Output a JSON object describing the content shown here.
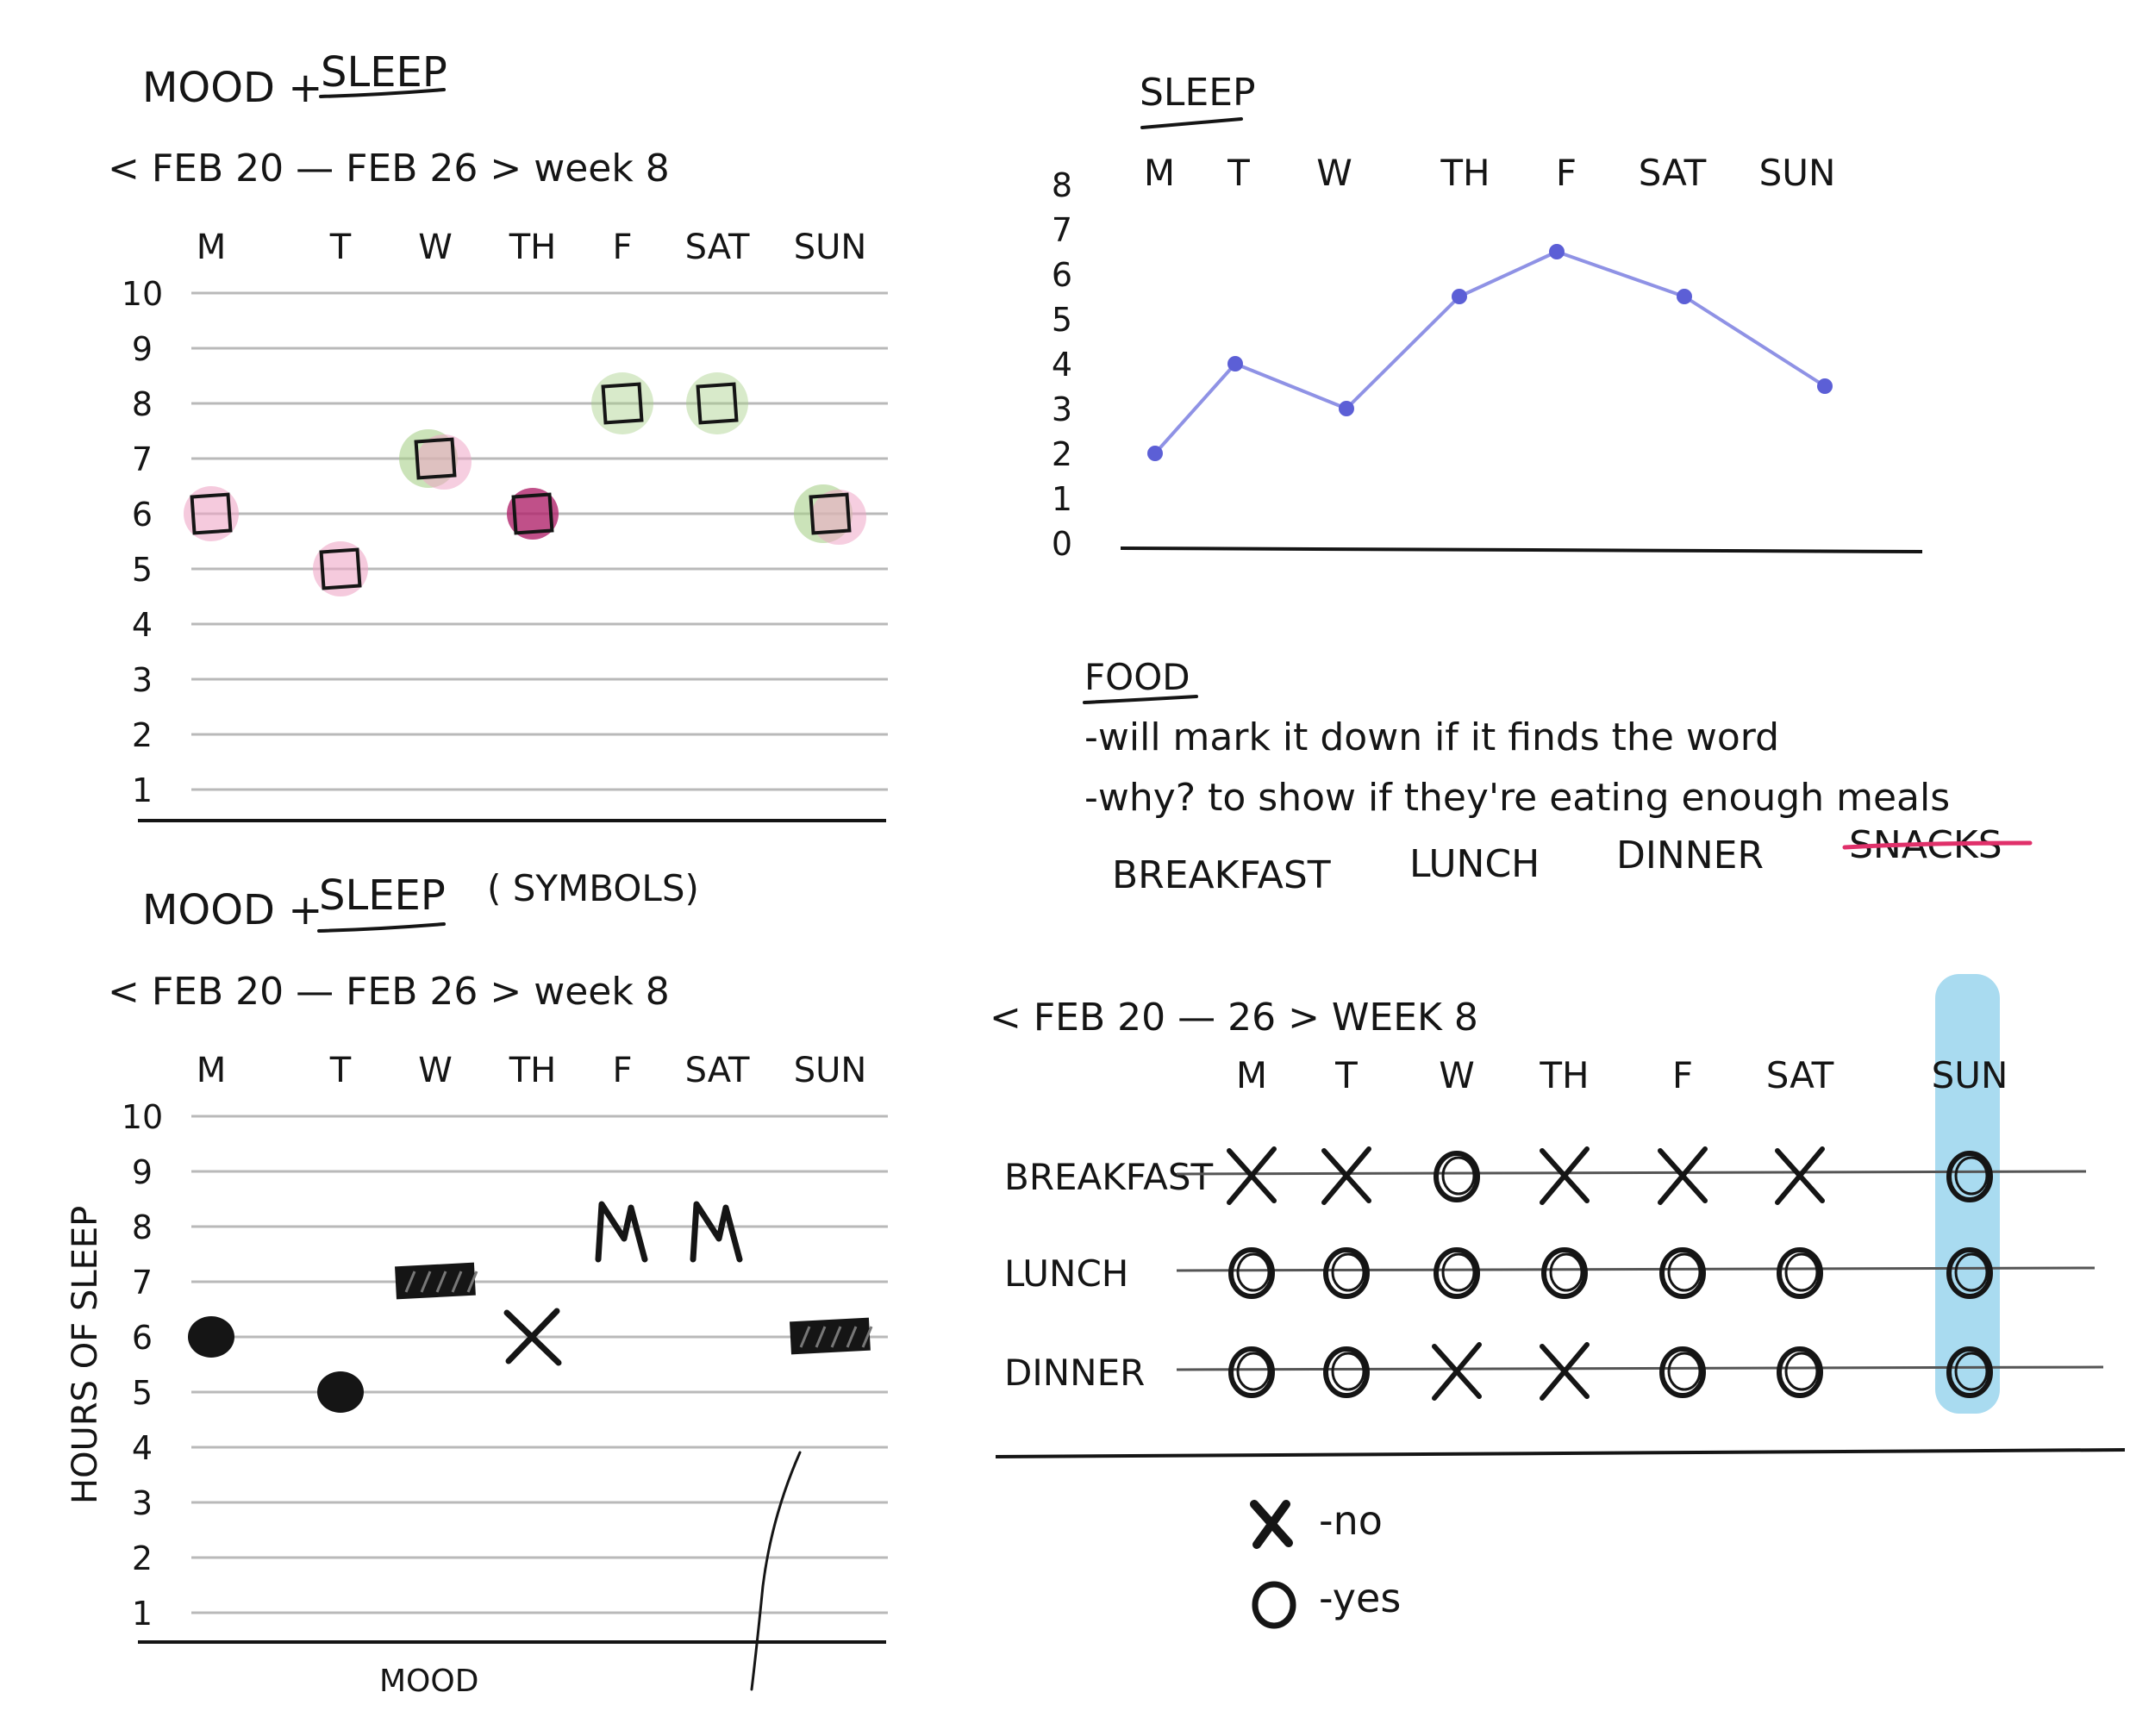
{
  "panel1": {
    "title_a": "MOOD +",
    "title_b": "SLEEP",
    "date_range": "< FEB 20 — FEB 26 > week 8",
    "days": [
      "M",
      "T",
      "W",
      "TH",
      "F",
      "SAT",
      "SUN"
    ],
    "y_ticks": [
      "10",
      "9",
      "8",
      "7",
      "6",
      "5",
      "4",
      "3",
      "2",
      "1"
    ]
  },
  "panel2": {
    "title_a": "MOOD +",
    "title_b": "SLEEP",
    "title_c": "( SYMBOLS)",
    "date_range": "< FEB 20 — FEB 26 > week 8",
    "days": [
      "M",
      "T",
      "W",
      "TH",
      "F",
      "SAT",
      "SUN"
    ],
    "y_ticks": [
      "10",
      "9",
      "8",
      "7",
      "6",
      "5",
      "4",
      "3",
      "2",
      "1"
    ],
    "ylabel": "HOURS OF SLEEP",
    "xlabel": "MOOD"
  },
  "panel3": {
    "title": "SLEEP",
    "days": [
      "M",
      "T",
      "W",
      "TH",
      "F",
      "SAT",
      "SUN"
    ],
    "y_ticks": [
      "8",
      "7",
      "6",
      "5",
      "4",
      "3",
      "2",
      "1",
      "0"
    ],
    "line_color": "#7B7FE0"
  },
  "food": {
    "title": "FOOD",
    "note1": "-will mark it down if it finds the word",
    "note2": "-why? to show if they're eating enough meals",
    "meals": [
      "BREAKFAST",
      "LUNCH",
      "DINNER"
    ],
    "struck": "SNACKS",
    "strike_color": "#E0306A"
  },
  "panel4": {
    "date_range": "< FEB 20 — 26 > WEEK 8",
    "days": [
      "M",
      "T",
      "W",
      "TH",
      "F",
      "SAT",
      "SUN"
    ],
    "rows": [
      "BREAKFAST",
      "LUNCH",
      "DINNER"
    ],
    "highlight_color": "#A9DBF0",
    "legend_no": "-no",
    "legend_yes": "-yes"
  },
  "chart_data": [
    {
      "type": "scatter",
      "categories": [
        "M",
        "T",
        "W",
        "TH",
        "F",
        "SAT",
        "SUN"
      ],
      "values": [
        6,
        5,
        7,
        6,
        8,
        8,
        6
      ],
      "mood_colors": [
        "pink",
        "pink",
        "green+pink",
        "magenta",
        "green",
        "green",
        "green+pink"
      ],
      "ylim": [
        1,
        10
      ],
      "colors": {
        "pink": "#EFA6C7",
        "green": "#A9D08A",
        "magenta": "#B0246C"
      }
    },
    {
      "type": "scatter",
      "categories": [
        "M",
        "T",
        "W",
        "TH",
        "F",
        "SAT",
        "SUN"
      ],
      "values": [
        6,
        5,
        7,
        6,
        8,
        8,
        6
      ],
      "symbols": [
        "dot",
        "dot",
        "bar",
        "x",
        "m",
        "m",
        "bar"
      ],
      "ylim": [
        1,
        10
      ]
    },
    {
      "type": "line",
      "categories": [
        "M",
        "T",
        "W",
        "TH",
        "F",
        "SAT",
        "SUN"
      ],
      "values": [
        2,
        4,
        3,
        5.5,
        6.5,
        5.5,
        3.5
      ],
      "ylim": [
        0,
        8
      ]
    },
    {
      "type": "table",
      "columns": [
        "M",
        "T",
        "W",
        "TH",
        "F",
        "SAT",
        "SUN"
      ],
      "rows": [
        {
          "name": "BREAKFAST",
          "values": [
            "X",
            "X",
            "O",
            "X",
            "X",
            "X",
            "O"
          ]
        },
        {
          "name": "LUNCH",
          "values": [
            "O",
            "O",
            "O",
            "O",
            "O",
            "O",
            "O"
          ]
        },
        {
          "name": "DINNER",
          "values": [
            "O",
            "O",
            "X",
            "X",
            "O",
            "O",
            "O"
          ]
        }
      ]
    }
  ]
}
